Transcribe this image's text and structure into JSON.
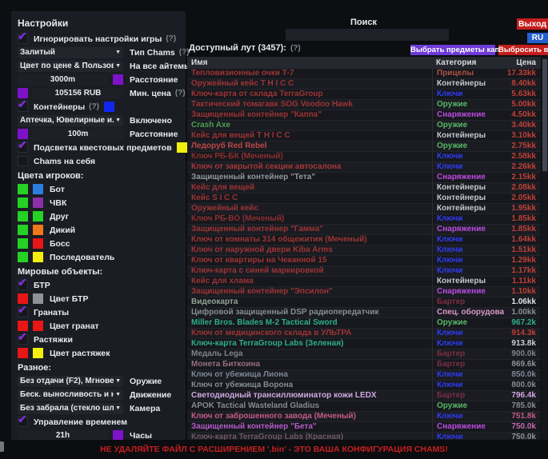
{
  "icons": {
    "checkmark": "✔",
    "dropdown_arrow": "▼",
    "help": "(?)"
  },
  "sidebar": {
    "title": "Настройки",
    "ignore_game_settings": {
      "label": "Игнорировать настройки игры",
      "hint": "(?)"
    },
    "chams_type": {
      "value": "Залитый",
      "label": "Тип Chams",
      "hint": "(?)"
    },
    "all_items": {
      "value": "Цвет по цене & Пользователь",
      "label": "На все айтемы"
    },
    "distance": {
      "value": "3000m",
      "label": "Расстояние",
      "swatch": "#7d12c9"
    },
    "min_price": {
      "value": "105156 RUB",
      "label": "Мин. цена",
      "hint": "(?)",
      "swatch": "#7d12c9"
    },
    "containers": {
      "label": "Контейнеры",
      "hint": "(?)",
      "swatch": "#1326f0"
    },
    "med_filter": {
      "value": "Аптечка, Ювелирные и...",
      "label": "Включено"
    },
    "distance2": {
      "value": "100m",
      "label": "Расстояние",
      "swatch": "#7d12c9"
    },
    "quest_highlight": {
      "label": "Подсветка квестовых предметов",
      "swatch": "#f2ef0e"
    },
    "self_chams": {
      "label": "Chams на себя"
    },
    "player_colors": {
      "title": "Цвета игроков:",
      "rows": [
        {
          "label": "Бот",
          "c1": "#25d125",
          "c2": "#2b7de0"
        },
        {
          "label": "ЧВК",
          "c1": "#25d125",
          "c2": "#8c2fa8"
        },
        {
          "label": "Друг",
          "c1": "#25d125",
          "c2": "#25d125"
        },
        {
          "label": "Дикий",
          "c1": "#25d125",
          "c2": "#f07818"
        },
        {
          "label": "Босс",
          "c1": "#25d125",
          "c2": "#e81616"
        },
        {
          "label": "Последователь",
          "c1": "#25d125",
          "c2": "#f2ef0e"
        }
      ]
    },
    "world_objects": {
      "title": "Мировые объекты:",
      "btr": {
        "label": "БТР"
      },
      "btr_color": {
        "label": "Цвет БТР",
        "c1": "#e81616",
        "c2": "#8f9296"
      },
      "grenades": {
        "label": "Гранаты"
      },
      "grenade_color": {
        "label": "Цвет гранат",
        "c1": "#e81616",
        "c2": "#e81616"
      },
      "tripwires": {
        "label": "Растяжки"
      },
      "tripwire_color": {
        "label": "Цвет растяжек",
        "c1": "#e81616",
        "c2": "#f2ef0e"
      }
    },
    "misc": {
      "title": "Разное:",
      "weapon": {
        "value": "Без отдачи (F2), Мгновенное п",
        "label": "Оружие"
      },
      "movement": {
        "value": "Беск. выносливость и нет уста",
        "label": "Движение"
      },
      "camera": {
        "value": "Без забрала (стекло шлема)",
        "label": "Камера"
      },
      "time_control": {
        "label": "Управление временем"
      },
      "hours": {
        "value": "21h",
        "label": "Часы",
        "swatch": "#7d12c9"
      }
    }
  },
  "topbar": {
    "search_label": "Поиск",
    "search_value": "",
    "exit_label": "Выход",
    "lang_label": "RU"
  },
  "loot": {
    "title": "Доступный лут (3457):",
    "hint": "(?)",
    "btn_kappa": "Выбрать предметы каппа",
    "btn_drop": "Выбросить все",
    "columns": [
      "Имя",
      "Категория",
      "Цена"
    ],
    "rows": [
      {
        "name": "Тепловизионные очки Т-7",
        "category": "Прицелы",
        "price": "17.33kk",
        "name_color": "#9c3434",
        "cat_color": "#ad5240",
        "price_color": "#c13f36"
      },
      {
        "name": "Оружейный кейс T H I C C",
        "category": "Контейнеры",
        "price": "8.40kk",
        "name_color": "#9c3434",
        "cat_color": "#c3c8cf",
        "price_color": "#c13f36"
      },
      {
        "name": "Ключ-карта от склада TerraGroup",
        "category": "Ключи",
        "price": "5.63kk",
        "name_color": "#9c3434",
        "cat_color": "#2e3cf2",
        "price_color": "#c13f36"
      },
      {
        "name": "Тактический томагавк SOG Voodoo Hawk",
        "category": "Оружие",
        "price": "5.00kk",
        "name_color": "#9c3434",
        "cat_color": "#58b768",
        "price_color": "#c13f36"
      },
      {
        "name": "Защищенный контейнер \"Каппа\"",
        "category": "Снаряжение",
        "price": "4.50kk",
        "name_color": "#9c3434",
        "cat_color": "#bb4be0",
        "price_color": "#c13f36"
      },
      {
        "name": "Crash Axe",
        "category": "Оружие",
        "price": "3.40kk",
        "name_color": "#4d9e55",
        "cat_color": "#58b768",
        "price_color": "#c13f36"
      },
      {
        "name": "Кейс для вещей T H I C C",
        "category": "Контейнеры",
        "price": "3.10kk",
        "name_color": "#9c3434",
        "cat_color": "#c3c8cf",
        "price_color": "#c13f36"
      },
      {
        "name": "Ледоруб Red Rebel",
        "category": "Оружие",
        "price": "2.75kk",
        "name_color": "#bc4848",
        "cat_color": "#58b768",
        "price_color": "#c13f36"
      },
      {
        "name": "Ключ РБ-БК (Меченый)",
        "category": "Ключи",
        "price": "2.58kk",
        "name_color": "#8d2f2f",
        "cat_color": "#2e3cf2",
        "price_color": "#c13f36"
      },
      {
        "name": "Ключ от закрытой секции автосалона",
        "category": "Ключи",
        "price": "2.26kk",
        "name_color": "#a33838",
        "cat_color": "#2e3cf2",
        "price_color": "#c13f36"
      },
      {
        "name": "Защищенный контейнер \"Тета\"",
        "category": "Снаряжение",
        "price": "2.15kk",
        "name_color": "#9298a1",
        "cat_color": "#bb4be0",
        "price_color": "#c13f36"
      },
      {
        "name": "Кейс для вещей",
        "category": "Контейнеры",
        "price": "2.08kk",
        "name_color": "#9c3434",
        "cat_color": "#c3c8cf",
        "price_color": "#c13f36"
      },
      {
        "name": "Кейс S I C C",
        "category": "Контейнеры",
        "price": "2.05kk",
        "name_color": "#9c3434",
        "cat_color": "#c3c8cf",
        "price_color": "#c13f36"
      },
      {
        "name": "Оружейный кейс",
        "category": "Контейнеры",
        "price": "1.95kk",
        "name_color": "#9c3434",
        "cat_color": "#c3c8cf",
        "price_color": "#c13f36"
      },
      {
        "name": "Ключ РБ-ВО (Меченый)",
        "category": "Ключи",
        "price": "1.85kk",
        "name_color": "#8d2f2f",
        "cat_color": "#2e3cf2",
        "price_color": "#c13f36"
      },
      {
        "name": "Защищенный контейнер \"Гамма\"",
        "category": "Снаряжение",
        "price": "1.85kk",
        "name_color": "#9c3434",
        "cat_color": "#bb4be0",
        "price_color": "#c13f36"
      },
      {
        "name": "Ключ от комнаты 314 общежития (Меченый)",
        "category": "Ключи",
        "price": "1.64kk",
        "name_color": "#9c3434",
        "cat_color": "#2e3cf2",
        "price_color": "#c13f36"
      },
      {
        "name": "Ключ от наружной двери Kiba Arms",
        "category": "Ключи",
        "price": "1.51kk",
        "name_color": "#9c3434",
        "cat_color": "#2e3cf2",
        "price_color": "#c13f36"
      },
      {
        "name": "Ключ от квартиры на Чеканной 15",
        "category": "Ключи",
        "price": "1.29kk",
        "name_color": "#9c3434",
        "cat_color": "#2e3cf2",
        "price_color": "#c13f36"
      },
      {
        "name": "Ключ-карта с синей маркировкой",
        "category": "Ключи",
        "price": "1.17kk",
        "name_color": "#9c3434",
        "cat_color": "#2e3cf2",
        "price_color": "#c13f36"
      },
      {
        "name": "Кейс для хлама",
        "category": "Контейнеры",
        "price": "1.11kk",
        "name_color": "#9c3434",
        "cat_color": "#c3c8cf",
        "price_color": "#c13f36"
      },
      {
        "name": "Защищенный контейнер \"Эпсилон\"",
        "category": "Снаряжение",
        "price": "1.10kk",
        "name_color": "#9c3434",
        "cat_color": "#bb4be0",
        "price_color": "#c13f36"
      },
      {
        "name": "Видеокарта",
        "category": "Бартер",
        "price": "1.06kk",
        "name_color": "#93a294",
        "cat_color": "#7c2f42",
        "price_color": "#dfe3e6"
      },
      {
        "name": "Цифровой защищенный DSP радиопередатчик",
        "category": "Спец. оборудование",
        "price": "1.00kk",
        "name_color": "#878d95",
        "cat_color": "#d898c8",
        "price_color": "#878d95"
      },
      {
        "name": "Miller Bros. Blades M-2 Tactical Sword",
        "category": "Оружие",
        "price": "967.2k",
        "name_color": "#2fae8c",
        "cat_color": "#58b768",
        "price_color": "#2fae8c"
      },
      {
        "name": "Ключ от медицинского склада в УЛЬТРА",
        "category": "Ключи",
        "price": "914.3k",
        "name_color": "#9c3434",
        "cat_color": "#2e3cf2",
        "price_color": "#c13f36"
      },
      {
        "name": "Ключ-карта TerraGroup Labs (Зеленая)",
        "category": "Ключи",
        "price": "913.8k",
        "name_color": "#2fae8c",
        "cat_color": "#2e3cf2",
        "price_color": "#ccd1d5"
      },
      {
        "name": "Медаль Lega",
        "category": "Бартер",
        "price": "900.0k",
        "name_color": "#7e848c",
        "cat_color": "#7c2f42",
        "price_color": "#7e848c"
      },
      {
        "name": "Монета Биткоина",
        "category": "Бартер",
        "price": "869.6k",
        "name_color": "#96707c",
        "cat_color": "#7c2f42",
        "price_color": "#8d939b"
      },
      {
        "name": "Ключ от убежища Лиона",
        "category": "Ключи",
        "price": "850.0k",
        "name_color": "#7e8793",
        "cat_color": "#2e3cf2",
        "price_color": "#7e8793"
      },
      {
        "name": "Ключ от убежища Ворона",
        "category": "Ключи",
        "price": "800.0k",
        "name_color": "#868d96",
        "cat_color": "#2e3cf2",
        "price_color": "#868d96"
      },
      {
        "name": "Светодиодный трансиллюминатор кожи LEDX",
        "category": "Бартер",
        "price": "796.4k",
        "name_color": "#cfa8e0",
        "cat_color": "#7c2f42",
        "price_color": "#cfa8e0"
      },
      {
        "name": "APOK Tactical Wasteland Gladius",
        "category": "Оружие",
        "price": "785.0k",
        "name_color": "#858c94",
        "cat_color": "#58b768",
        "price_color": "#858c94"
      },
      {
        "name": "Ключ от заброшенного завода (Меченый)",
        "category": "Ключи",
        "price": "751.8k",
        "name_color": "#c25a8a",
        "cat_color": "#2e3cf2",
        "price_color": "#c25a8a"
      },
      {
        "name": "Защищенный контейнер \"Бета\"",
        "category": "Снаряжение",
        "price": "750.0k",
        "name_color": "#b45cc8",
        "cat_color": "#bb4be0",
        "price_color": "#c06aac"
      },
      {
        "name": "Ключ-карта TerraGroup Labs (Красная)",
        "category": "Ключи",
        "price": "750.0k",
        "name_color": "#6e5a66",
        "cat_color": "#2e3cf2",
        "price_color": "#8d939b"
      }
    ]
  },
  "footer": {
    "warning": "НЕ УДАЛЯЙТЕ ФАЙЛ С РАСШИРЕНИЕМ '.bin'  - ЭТО ВАША КОНФИГУРАЦИЯ CHAMS!"
  }
}
